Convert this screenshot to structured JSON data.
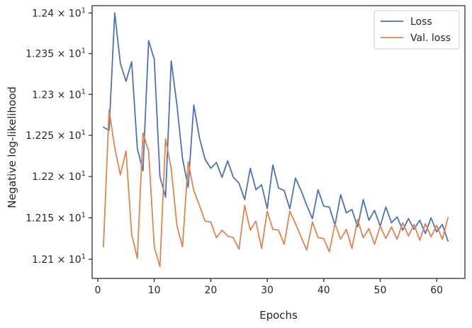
{
  "chart_data": {
    "type": "line",
    "xlabel": "Epochs",
    "ylabel": "Negative log-likelihood",
    "xlim": [
      -1,
      65
    ],
    "ylim": [
      12.077,
      12.409
    ],
    "y_scale": "log",
    "grid": false,
    "legend_position": "top-right",
    "x_ticks": [
      0,
      10,
      20,
      30,
      40,
      50,
      60
    ],
    "y_ticks": [
      {
        "value": 12.1,
        "mantissa": "1.21"
      },
      {
        "value": 12.15,
        "mantissa": "1.215"
      },
      {
        "value": 12.2,
        "mantissa": "1.22"
      },
      {
        "value": 12.25,
        "mantissa": "1.225"
      },
      {
        "value": 12.3,
        "mantissa": "1.23"
      },
      {
        "value": 12.35,
        "mantissa": "1.235"
      },
      {
        "value": 12.4,
        "mantissa": "1.24"
      }
    ],
    "y_tick_suffix": "× 10",
    "y_tick_exponent": "1",
    "x": [
      1,
      2,
      3,
      4,
      5,
      6,
      7,
      8,
      9,
      10,
      11,
      12,
      13,
      14,
      15,
      16,
      17,
      18,
      19,
      20,
      21,
      22,
      23,
      24,
      25,
      26,
      27,
      28,
      29,
      30,
      31,
      32,
      33,
      34,
      35,
      36,
      37,
      38,
      39,
      40,
      41,
      42,
      43,
      44,
      45,
      46,
      47,
      48,
      49,
      50,
      51,
      52,
      53,
      54,
      55,
      56,
      57,
      58,
      59,
      60,
      61,
      62
    ],
    "series": [
      {
        "name": "Loss",
        "color": "#4c72b0",
        "values": [
          12.26,
          12.256,
          12.4,
          12.338,
          12.316,
          12.34,
          12.234,
          12.207,
          12.366,
          12.343,
          12.2,
          12.175,
          12.341,
          12.288,
          12.222,
          12.187,
          12.287,
          12.247,
          12.221,
          12.21,
          12.217,
          12.199,
          12.219,
          12.199,
          12.192,
          12.172,
          12.21,
          12.184,
          12.19,
          12.161,
          12.214,
          12.186,
          12.183,
          12.161,
          12.198,
          12.183,
          12.165,
          12.149,
          12.184,
          12.164,
          12.163,
          12.141,
          12.178,
          12.156,
          12.16,
          12.139,
          12.172,
          12.147,
          12.159,
          12.14,
          12.163,
          12.144,
          12.151,
          12.135,
          12.149,
          12.136,
          12.147,
          12.131,
          12.15,
          12.133,
          12.142,
          12.122
        ]
      },
      {
        "name": "Val. loss",
        "color": "#dd8452",
        "values": [
          12.115,
          12.281,
          12.235,
          12.202,
          12.231,
          12.13,
          12.101,
          12.253,
          12.231,
          12.115,
          12.091,
          12.246,
          12.21,
          12.141,
          12.115,
          12.218,
          12.183,
          12.165,
          12.146,
          12.145,
          12.126,
          12.135,
          12.128,
          12.126,
          12.112,
          12.165,
          12.135,
          12.146,
          12.113,
          12.158,
          12.136,
          12.135,
          12.118,
          12.158,
          12.143,
          12.127,
          12.111,
          12.145,
          12.126,
          12.125,
          12.109,
          12.143,
          12.124,
          12.136,
          12.113,
          12.148,
          12.126,
          12.137,
          12.118,
          12.14,
          12.125,
          12.139,
          12.124,
          12.144,
          12.128,
          12.142,
          12.123,
          12.143,
          12.127,
          12.141,
          12.124,
          12.15
        ]
      }
    ]
  }
}
